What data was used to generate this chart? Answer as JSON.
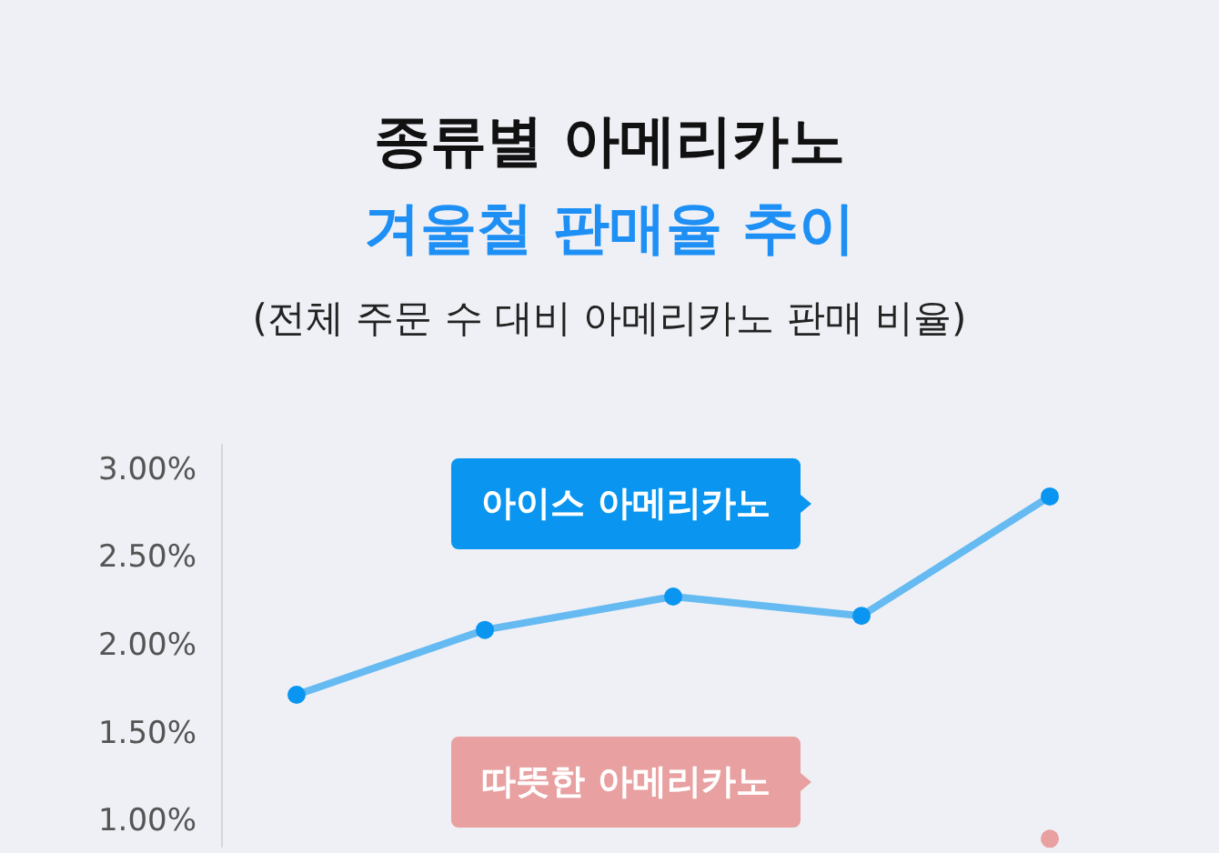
{
  "chart_data": {
    "type": "line",
    "title": "종류별 아메리카노",
    "subtitle": "겨울철 판매율 추이",
    "annotations": [
      "(전체 주문 수 대비 아메리카노 판매 비율)"
    ],
    "categories": [
      null,
      null,
      null,
      null,
      null
    ],
    "series": [
      {
        "name": "아이스 아메리카노",
        "color": "#0a96f0",
        "values": [
          1.72,
          2.09,
          2.28,
          2.17,
          2.85
        ]
      },
      {
        "name": "따뜻한 아메리카노",
        "color": "#e8a0a0",
        "values": [
          null,
          null,
          null,
          null,
          0.9
        ]
      }
    ],
    "ylim": [
      0.85,
      3.15
    ],
    "yticks": [
      {
        "value": 1,
        "label": "1.00%"
      },
      {
        "value": 1.5,
        "label": "1.50%"
      },
      {
        "value": 2,
        "label": "2.00%"
      },
      {
        "value": 2.5,
        "label": "2.50%"
      },
      {
        "value": 3,
        "label": "3.00%"
      }
    ],
    "marker": "circle",
    "grid": false
  }
}
